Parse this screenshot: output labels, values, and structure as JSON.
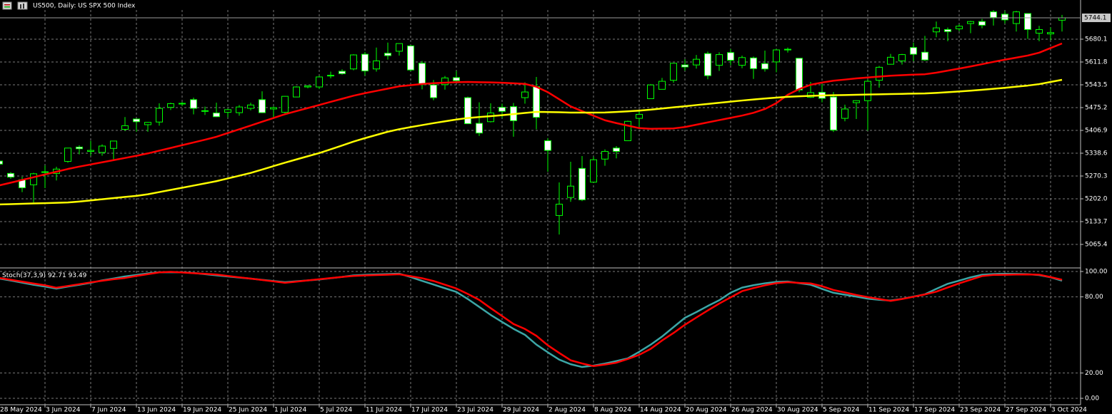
{
  "chart_data": [
    {
      "type": "candlestick",
      "title": "US500, Daily: US SPX 500 Index",
      "categories": [
        "28 May 2024",
        null,
        null,
        null,
        "3 Jun 2024",
        null,
        null,
        null,
        "7 Jun 2024",
        null,
        null,
        null,
        "13 Jun 2024",
        null,
        null,
        null,
        "19 Jun 2024",
        null,
        null,
        null,
        "25 Jun 2024",
        null,
        null,
        null,
        "1 Jul 2024",
        null,
        null,
        null,
        "5 Jul 2024",
        null,
        null,
        null,
        "11 Jul 2024",
        null,
        null,
        null,
        "17 Jul 2024",
        null,
        null,
        null,
        "23 Jul 2024",
        null,
        null,
        null,
        "29 Jul 2024",
        null,
        null,
        null,
        "2 Aug 2024",
        null,
        null,
        null,
        "8 Aug 2024",
        null,
        null,
        null,
        "14 Aug 2024",
        null,
        null,
        null,
        "20 Aug 2024",
        null,
        null,
        null,
        "26 Aug 2024",
        null,
        null,
        null,
        "30 Aug 2024",
        null,
        null,
        null,
        "5 Sep 2024",
        null,
        null,
        null,
        "11 Sep 2024",
        null,
        null,
        null,
        "17 Sep 2024",
        null,
        null,
        null,
        "23 Sep 2024",
        null,
        null,
        null,
        "27 Sep 2024",
        null,
        null,
        null,
        "3 Oct 2024",
        null
      ],
      "open": [
        5315,
        5278,
        5259,
        5244,
        5283,
        5278,
        5314,
        5357,
        5344,
        5341,
        5353,
        5410,
        5441,
        5424,
        5432,
        5476,
        5487,
        5499,
        5466,
        5459,
        5461,
        5460,
        5473,
        5499,
        5471,
        5461,
        5507,
        5537,
        5537,
        5572,
        5584,
        5591,
        5635,
        5591,
        5638,
        5644,
        5660,
        5608,
        5543,
        5544,
        5565,
        5505,
        5428,
        5433,
        5476,
        5478,
        5505,
        5538,
        5376,
        5152,
        5206,
        5293,
        5252,
        5321,
        5354,
        5376,
        5443,
        5502,
        5530,
        5557,
        5603,
        5603,
        5637,
        5602,
        5640,
        5602,
        5624,
        5607,
        5612,
        5648,
        5623,
        5506,
        5521,
        5507,
        5443,
        5490,
        5496,
        5557,
        5605,
        5615,
        5655,
        5641,
        5702,
        5709,
        5711,
        5727,
        5733,
        5762,
        5755,
        5727,
        5757,
        5698,
        5696,
        5737
      ],
      "high": [
        5315,
        5282,
        5268,
        5280,
        5302,
        5298,
        5354,
        5362,
        5376,
        5365,
        5376,
        5447,
        5442,
        5432,
        5488,
        5490,
        5492,
        5505,
        5478,
        5490,
        5472,
        5483,
        5490,
        5524,
        5479,
        5510,
        5539,
        5542,
        5570,
        5583,
        5590,
        5635,
        5642,
        5655,
        5670,
        5667,
        5662,
        5615,
        5558,
        5570,
        5585,
        5508,
        5491,
        5488,
        5487,
        5489,
        5551,
        5567,
        5384,
        5251,
        5313,
        5330,
        5328,
        5350,
        5360,
        5436,
        5464,
        5546,
        5564,
        5608,
        5620,
        5633,
        5643,
        5641,
        5651,
        5631,
        5628,
        5646,
        5651,
        5655,
        5623,
        5552,
        5546,
        5522,
        5484,
        5497,
        5560,
        5600,
        5636,
        5636,
        5670,
        5690,
        5733,
        5715,
        5725,
        5735,
        5741,
        5767,
        5764,
        5765,
        5757,
        5720,
        5715,
        5753
      ],
      "low": [
        5280,
        5262,
        5222,
        5191,
        5234,
        5257,
        5310,
        5335,
        5331,
        5331,
        5320,
        5405,
        5403,
        5403,
        5421,
        5468,
        5480,
        5455,
        5453,
        5447,
        5446,
        5451,
        5467,
        5459,
        5446,
        5458,
        5507,
        5533,
        5531,
        5563,
        5574,
        5587,
        5571,
        5583,
        5619,
        5631,
        5584,
        5530,
        5497,
        5529,
        5550,
        5426,
        5390,
        5431,
        5444,
        5388,
        5487,
        5410,
        5283,
        5095,
        5193,
        5195,
        5250,
        5301,
        5323,
        5376,
        5418,
        5502,
        5530,
        5550,
        5586,
        5592,
        5560,
        5585,
        5602,
        5593,
        5561,
        5583,
        5581,
        5640,
        5521,
        5504,
        5491,
        5402,
        5434,
        5441,
        5406,
        5535,
        5604,
        5604,
        5614,
        5615,
        5686,
        5674,
        5704,
        5698,
        5713,
        5721,
        5727,
        5703,
        5681,
        5674,
        5677,
        5703
      ],
      "close": [
        5306,
        5267,
        5235,
        5277,
        5283,
        5291,
        5354,
        5352,
        5347,
        5360,
        5375,
        5421,
        5433,
        5431,
        5473,
        5487,
        5488,
        5473,
        5465,
        5448,
        5469,
        5477,
        5483,
        5460,
        5475,
        5509,
        5537,
        5540,
        5567,
        5572,
        5577,
        5633,
        5585,
        5615,
        5631,
        5667,
        5588,
        5544,
        5505,
        5564,
        5556,
        5427,
        5399,
        5459,
        5464,
        5436,
        5522,
        5446,
        5347,
        5186,
        5240,
        5199,
        5319,
        5344,
        5344,
        5434,
        5455,
        5543,
        5554,
        5608,
        5597,
        5620,
        5571,
        5634,
        5617,
        5625,
        5592,
        5591,
        5648,
        5650,
        5528,
        5520,
        5503,
        5408,
        5471,
        5496,
        5554,
        5596,
        5626,
        5634,
        5635,
        5618,
        5714,
        5703,
        5719,
        5733,
        5722,
        5745,
        5738,
        5762,
        5709,
        5709,
        5700,
        5744.1
      ],
      "up_color": "#000000",
      "down_color": "#ffffff",
      "wick_color": "#00ff00",
      "lines": [
        {
          "color": "#ff0000",
          "values": [
            5242.1,
            5250.3,
            5258.5,
            5266.7,
            5274.9,
            5283.1,
            5291.3,
            5298.4,
            5304.8,
            5311.3,
            5317.8,
            5324.3,
            5330.8,
            5338.0,
            5346.2,
            5354.4,
            5362.6,
            5370.8,
            5379.0,
            5387.7,
            5399.0,
            5410.2,
            5421.5,
            5432.8,
            5444.0,
            5455.3,
            5464.7,
            5473.9,
            5483.1,
            5492.4,
            5501.6,
            5510.8,
            5518.4,
            5525.2,
            5532.1,
            5538.9,
            5542.5,
            5545.9,
            5548.4,
            5549.8,
            5551.2,
            5551.9,
            5551.2,
            5550.6,
            5549.7,
            5548.0,
            5546.2,
            5537.4,
            5521.4,
            5500.1,
            5478.8,
            5464.6,
            5450.9,
            5437.3,
            5428.8,
            5421.3,
            5413.7,
            5411.7,
            5412.2,
            5412.9,
            5417.1,
            5424.0,
            5430.9,
            5437.7,
            5444.5,
            5451.3,
            5459.6,
            5471.0,
            5488.6,
            5513.7,
            5530.7,
            5543.5,
            5550.3,
            5555.7,
            5559.1,
            5562.6,
            5565.4,
            5568.1,
            5570.8,
            5572.4,
            5573.8,
            5575.1,
            5579.7,
            5585.9,
            5592.0,
            5598.5,
            5605.3,
            5612.2,
            5618.8,
            5624.9,
            5631.1,
            5639.6,
            5653.5,
            5667.3
          ]
        },
        {
          "color": "#ffff00",
          "values": [
            5185.0,
            5186.0,
            5187.0,
            5188.0,
            5189.0,
            5190.1,
            5191.1,
            5193.8,
            5197.2,
            5200.6,
            5204.1,
            5207.5,
            5210.9,
            5215.6,
            5222.1,
            5228.6,
            5235.1,
            5241.6,
            5248.1,
            5254.8,
            5263.0,
            5271.2,
            5279.5,
            5289.7,
            5300.0,
            5310.2,
            5319.9,
            5329.5,
            5339.0,
            5350.2,
            5361.8,
            5373.5,
            5383.7,
            5393.3,
            5402.9,
            5410.5,
            5416.7,
            5422.8,
            5428.6,
            5434.1,
            5439.5,
            5444.1,
            5446.8,
            5449.6,
            5452.4,
            5455.8,
            5459.2,
            5462.4,
            5461.9,
            5461.2,
            5460.3,
            5460.3,
            5460.3,
            5460.4,
            5462.0,
            5464.1,
            5466.1,
            5469.1,
            5472.5,
            5475.9,
            5479.3,
            5482.8,
            5486.2,
            5489.6,
            5493.0,
            5496.4,
            5499.6,
            5502.4,
            5505.1,
            5507.6,
            5509.0,
            5510.3,
            5511.5,
            5512.2,
            5512.9,
            5513.6,
            5514.3,
            5515.0,
            5515.7,
            5516.4,
            5517.1,
            5517.7,
            5519.3,
            5521.3,
            5523.4,
            5525.9,
            5528.6,
            5531.4,
            5534.4,
            5537.8,
            5541.2,
            5545.5,
            5552.0,
            5558.5
          ]
        }
      ],
      "ylim": [
        4997.1,
        5767.6
      ],
      "yticks": [
        5065.4,
        5133.7,
        {
          "value": 5202,
          "label": "5202.0"
        },
        5270.3,
        5338.6,
        5406.9,
        5475.2,
        5543.5,
        5611.8,
        5680.1
      ],
      "grid": true
    },
    {
      "type": "line",
      "title": "Stoch(37,3,9)",
      "series": [
        {
          "color": "#3ca6a6",
          "values": [
            94.4,
            92.9,
            91.2,
            89.5,
            88.1,
            86.5,
            88.1,
            89.5,
            91.1,
            93.0,
            94.5,
            96.1,
            97.3,
            98.5,
            99.4,
            99.4,
            99.4,
            98.8,
            97.9,
            97.0,
            96.1,
            95.2,
            94.4,
            93.4,
            92.5,
            91.6,
            92.3,
            93.0,
            93.7,
            94.7,
            95.7,
            96.9,
            97.4,
            97.7,
            98.0,
            98.3,
            95.6,
            92.6,
            89.7,
            86.8,
            83.9,
            78.3,
            72.1,
            65.8,
            60.2,
            54.8,
            50.1,
            42.4,
            36.3,
            30.5,
            26.9,
            24.7,
            25.8,
            27.4,
            29.4,
            31.5,
            36.7,
            42.3,
            48.7,
            56.1,
            63.5,
            68.0,
            72.8,
            77.3,
            83.3,
            87.3,
            89.2,
            90.7,
            91.8,
            92.1,
            90.8,
            89.6,
            86.3,
            83.2,
            81.7,
            80.2,
            78.6,
            77.7,
            77.1,
            78.4,
            80.2,
            82.0,
            86.3,
            90.3,
            92.8,
            95.4,
            97.4,
            98.0,
            98.2,
            98.1,
            97.9,
            97.2,
            95.4,
            92.71
          ]
        },
        {
          "color": "#ff0000",
          "values": [
            94.9,
            93.5,
            92.0,
            90.5,
            89.1,
            87.2,
            88.6,
            90.0,
            91.4,
            92.7,
            93.9,
            94.9,
            96.5,
            97.9,
            99.3,
            99.7,
            99.2,
            98.7,
            98.2,
            97.6,
            96.5,
            95.4,
            94.4,
            93.3,
            92.2,
            91.1,
            92.0,
            93.0,
            93.9,
            94.8,
            95.7,
            96.5,
            96.9,
            97.2,
            97.5,
            97.8,
            96.3,
            94.7,
            92.5,
            89.6,
            86.6,
            82.3,
            77.6,
            71.1,
            64.9,
            58.6,
            54.7,
            49.3,
            41.8,
            35.8,
            30.0,
            27.5,
            25.4,
            26.6,
            28.1,
            31.0,
            34.3,
            39.0,
            45.6,
            51.5,
            58.0,
            63.7,
            69.3,
            74.7,
            79.6,
            84.5,
            86.9,
            89.1,
            90.8,
            91.6,
            91.0,
            90.6,
            88.4,
            85.4,
            83.5,
            81.5,
            79.8,
            78.3,
            76.8,
            78.3,
            80.1,
            81.9,
            84.1,
            87.4,
            90.6,
            93.5,
            96.4,
            97.3,
            97.4,
            97.6,
            97.7,
            97.5,
            95.6,
            93.49
          ]
        }
      ],
      "ylim": [
        -5.05,
        102.25
      ],
      "yticks": [
        {
          "value": 0,
          "label": "0.00"
        },
        {
          "value": 20,
          "label": "20.00"
        },
        {
          "value": 80,
          "label": "80.00"
        },
        {
          "value": 100,
          "label": "100.00"
        }
      ],
      "grid": true
    }
  ]
}
